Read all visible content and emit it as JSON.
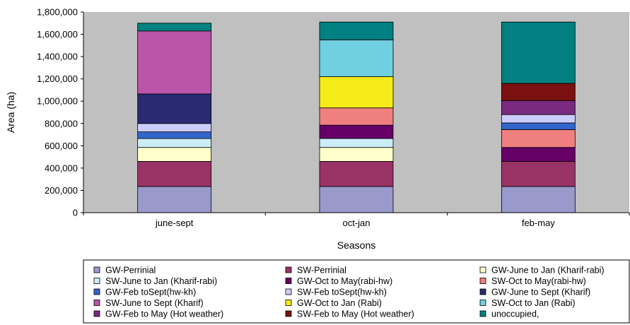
{
  "chart_data": {
    "type": "bar",
    "stacked": true,
    "categories": [
      "june-sept",
      "oct-jan",
      "feb-may"
    ],
    "xlabel": "Seasons",
    "ylabel": "Area (ha)",
    "ylim": [
      0,
      1800000
    ],
    "yticks": [
      0,
      200000,
      400000,
      600000,
      800000,
      1000000,
      1200000,
      1400000,
      1600000,
      1800000
    ],
    "ytick_labels": [
      "0",
      "200,000",
      "400,000",
      "600,000",
      "800,000",
      "1,000,000",
      "1,200,000",
      "1,400,000",
      "1,600,000",
      "1,800,000"
    ],
    "grid": false,
    "plot_background": "#c0c0c0",
    "legend_position": "bottom",
    "series": [
      {
        "name": "GW-Perrinial",
        "color": "#9999cc",
        "values": [
          235000,
          235000,
          235000
        ]
      },
      {
        "name": "SW-Perrinial",
        "color": "#993366",
        "values": [
          225000,
          225000,
          225000
        ]
      },
      {
        "name": "GW-June to Jan (Kharif-rabi)",
        "color": "#ffffcc",
        "values": [
          125000,
          125000,
          0
        ]
      },
      {
        "name": "SW-June to Jan (Kharif-rabi)",
        "color": "#ccecf6",
        "values": [
          80000,
          80000,
          0
        ]
      },
      {
        "name": "GW-Oct to May(rabi-hw)",
        "color": "#660066",
        "values": [
          0,
          120000,
          125000
        ]
      },
      {
        "name": "SW-Oct to May(rabi-hw)",
        "color": "#f08080",
        "values": [
          0,
          155000,
          160000
        ]
      },
      {
        "name": "GW-Feb toSept(hw-kh)",
        "color": "#3366cc",
        "values": [
          60000,
          0,
          60000
        ]
      },
      {
        "name": "SW-Feb toSept(hw-kh)",
        "color": "#ccccff",
        "values": [
          75000,
          0,
          75000
        ]
      },
      {
        "name": "GW-June to Sept (Kharif)",
        "color": "#2a2a72",
        "values": [
          265000,
          0,
          0
        ]
      },
      {
        "name": "SW-June to Sept (Kharif)",
        "color": "#bb55aa",
        "values": [
          565000,
          0,
          0
        ]
      },
      {
        "name": "GW-Oct to Jan (Rabi)",
        "color": "#f5ec1a",
        "values": [
          0,
          280000,
          0
        ]
      },
      {
        "name": "SW-Oct to Jan (Rabi)",
        "color": "#70cfe0",
        "values": [
          0,
          330000,
          0
        ]
      },
      {
        "name": "GW-Feb to May (Hot weather)",
        "color": "#7a2a80",
        "values": [
          0,
          0,
          125000
        ]
      },
      {
        "name": "SW-Feb to May (Hot weather)",
        "color": "#7a1010",
        "values": [
          0,
          0,
          155000
        ]
      },
      {
        "name": "unoccupied,",
        "color": "#008080",
        "values": [
          70000,
          160000,
          550000
        ]
      }
    ]
  }
}
